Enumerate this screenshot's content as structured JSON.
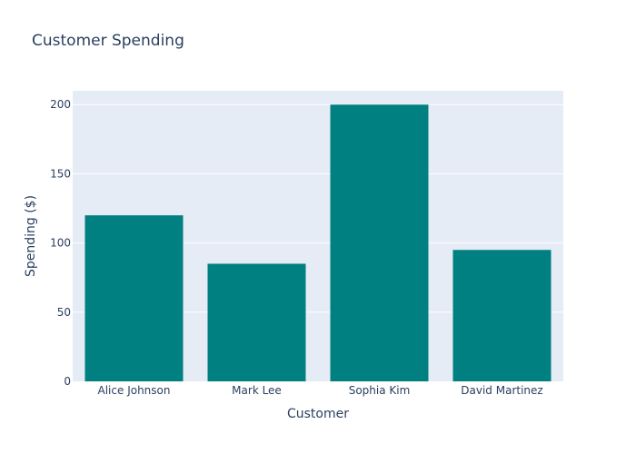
{
  "chart_data": {
    "type": "bar",
    "title": "Customer Spending",
    "xlabel": "Customer",
    "ylabel": "Spending ($)",
    "categories": [
      "Alice Johnson",
      "Mark Lee",
      "Sophia Kim",
      "David Martinez"
    ],
    "values": [
      120,
      85,
      200,
      95
    ],
    "ylim": [
      0,
      210
    ],
    "yticks": [
      0,
      50,
      100,
      150,
      200
    ],
    "grid": true,
    "legend": "none",
    "colors": {
      "bar": "#008080",
      "plot_background": "#E5ECF6",
      "text": "#2a3f5f",
      "grid": "#ffffff"
    }
  }
}
